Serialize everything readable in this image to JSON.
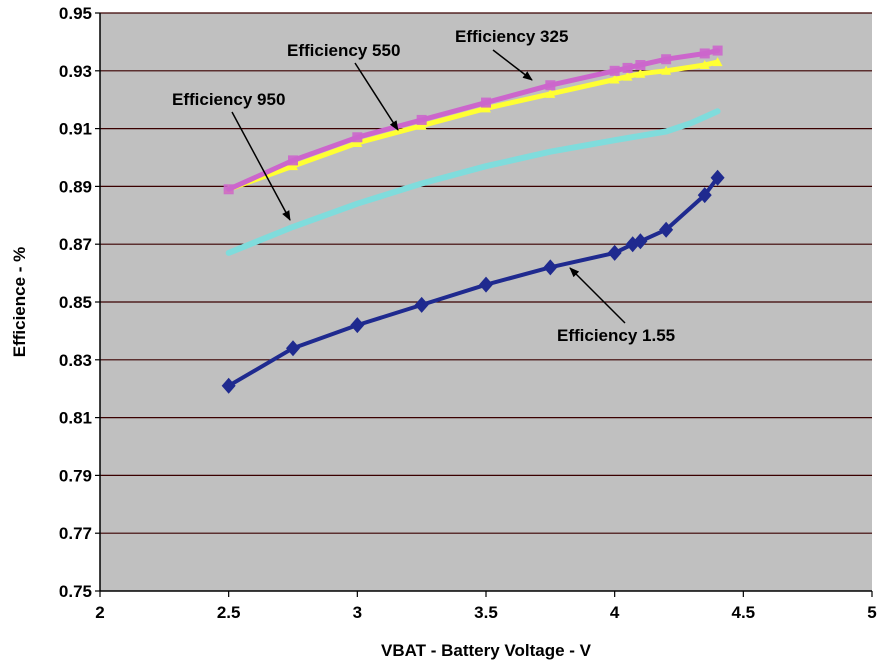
{
  "chart_data": {
    "type": "line",
    "xlabel": "VBAT - Battery Voltage - V",
    "ylabel": "Efficience - %",
    "xlim": [
      2,
      5
    ],
    "ylim": [
      0.75,
      0.95
    ],
    "xticks": [
      "2",
      "2.5",
      "3",
      "3.5",
      "4",
      "4.5",
      "5"
    ],
    "yticks": [
      "0.75",
      "0.77",
      "0.79",
      "0.81",
      "0.83",
      "0.85",
      "0.87",
      "0.89",
      "0.91",
      "0.93",
      "0.95"
    ],
    "grid": true,
    "legend": "none",
    "background": "#c0c0c0",
    "series": [
      {
        "name": "Efficiency 325",
        "color": "#cc66cc",
        "marker": "square",
        "x": [
          2.5,
          2.75,
          3.0,
          3.25,
          3.5,
          3.75,
          4.0,
          4.05,
          4.1,
          4.2,
          4.35,
          4.4
        ],
        "y": [
          0.889,
          0.899,
          0.907,
          0.913,
          0.919,
          0.925,
          0.93,
          0.931,
          0.932,
          0.934,
          0.936,
          0.937
        ]
      },
      {
        "name": "Efficiency 550",
        "color": "#ffff33",
        "marker": "triangle",
        "x": [
          2.5,
          2.75,
          3.0,
          3.25,
          3.5,
          3.75,
          4.0,
          4.05,
          4.1,
          4.2,
          4.35,
          4.4
        ],
        "y": [
          0.889,
          0.897,
          0.905,
          0.911,
          0.917,
          0.922,
          0.927,
          0.928,
          0.929,
          0.93,
          0.932,
          0.933
        ]
      },
      {
        "name": "Efficiency 950",
        "color": "#7fdcdc",
        "marker": "none",
        "x": [
          2.5,
          2.75,
          3.0,
          3.25,
          3.5,
          3.75,
          4.0,
          4.2,
          4.3,
          4.4
        ],
        "y": [
          0.867,
          0.876,
          0.884,
          0.891,
          0.897,
          0.902,
          0.906,
          0.909,
          0.912,
          0.916
        ]
      },
      {
        "name": "Efficiency 1.55",
        "color": "#1f2a8f",
        "marker": "diamond",
        "x": [
          2.5,
          2.75,
          3.0,
          3.25,
          3.5,
          3.75,
          4.0,
          4.07,
          4.1,
          4.2,
          4.35,
          4.4
        ],
        "y": [
          0.821,
          0.834,
          0.842,
          0.849,
          0.856,
          0.862,
          0.867,
          0.87,
          0.871,
          0.875,
          0.887,
          0.893
        ]
      }
    ],
    "annotations": [
      {
        "text": "Efficiency 325",
        "series": "Efficiency 325"
      },
      {
        "text": "Efficiency 550",
        "series": "Efficiency 550"
      },
      {
        "text": "Efficiency 950",
        "series": "Efficiency 950"
      },
      {
        "text": "Efficiency 1.55",
        "series": "Efficiency 1.55"
      }
    ]
  }
}
